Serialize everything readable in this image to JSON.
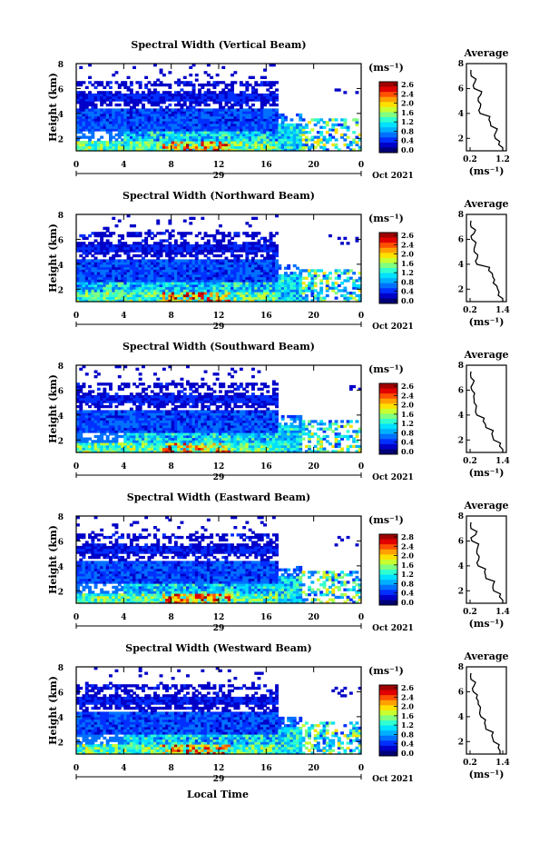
{
  "figure": {
    "shared_xlabel": "Local Time",
    "date_label": "Oct 2021",
    "day_label": "29",
    "units_label": "(ms⁻¹)",
    "average_title": "Average",
    "colormap": [
      "#00007a",
      "#0000c8",
      "#0030ff",
      "#0070ff",
      "#00b0ff",
      "#00e0ff",
      "#30ffd0",
      "#80ff80",
      "#c8ff30",
      "#ffe000",
      "#ffa000",
      "#ff5000",
      "#e00000",
      "#a00000"
    ]
  },
  "chart_data": [
    {
      "type": "heatmap",
      "title": "Spectral Width (Vertical Beam)",
      "ylabel": "Height (km)",
      "x_range": [
        0,
        24
      ],
      "y_range": [
        1,
        8
      ],
      "x_ticks": [
        "0",
        "4",
        "8",
        "12",
        "16",
        "20",
        "0"
      ],
      "y_ticks": [
        "2",
        "4",
        "6",
        "8"
      ],
      "colorbar_ticks": [
        "2.6",
        "2.4",
        "2.0",
        "1.6",
        "1.2",
        "0.8",
        "0.4",
        "0.0"
      ],
      "color_range": [
        0,
        2.8
      ],
      "average": {
        "xlim": [
          0.2,
          1.2
        ],
        "x_ticks": [
          "0.2",
          "1.2"
        ],
        "xlabel": "(ms⁻¹)",
        "heights": [
          1.0,
          1.5,
          2.0,
          2.5,
          3.0,
          3.5,
          4.0,
          4.5,
          5.0,
          5.5,
          6.0,
          6.5,
          7.0,
          7.5
        ],
        "values": [
          1.2,
          1.05,
          1.0,
          0.95,
          0.85,
          0.75,
          0.55,
          0.5,
          0.45,
          0.5,
          0.35,
          0.3,
          0.25,
          0.2
        ]
      }
    },
    {
      "type": "heatmap",
      "title": "Spectral Width (Northward Beam)",
      "ylabel": "Height (km)",
      "x_range": [
        0,
        24
      ],
      "y_range": [
        1,
        8
      ],
      "x_ticks": [
        "0",
        "4",
        "8",
        "12",
        "16",
        "20",
        "0"
      ],
      "y_ticks": [
        "2",
        "4",
        "6",
        "8"
      ],
      "colorbar_ticks": [
        "2.6",
        "2.4",
        "2.0",
        "1.6",
        "1.2",
        "0.8",
        "0.4",
        "0.0"
      ],
      "color_range": [
        0,
        2.8
      ],
      "average": {
        "xlim": [
          0.2,
          1.4
        ],
        "x_ticks": [
          "0.2",
          "1.4"
        ],
        "xlabel": "(ms⁻¹)",
        "heights": [
          1.0,
          1.5,
          2.0,
          2.5,
          3.0,
          3.5,
          4.0,
          4.5,
          5.0,
          5.5,
          6.0,
          6.5,
          7.0,
          7.5
        ],
        "values": [
          1.4,
          1.2,
          1.25,
          1.0,
          1.05,
          0.85,
          0.5,
          0.45,
          0.35,
          0.35,
          0.3,
          0.3,
          0.25,
          0.2
        ]
      }
    },
    {
      "type": "heatmap",
      "title": "Spectral Width (Southward Beam)",
      "ylabel": "Height (km)",
      "x_range": [
        0,
        24
      ],
      "y_range": [
        1,
        8
      ],
      "x_ticks": [
        "0",
        "4",
        "8",
        "12",
        "16",
        "20",
        "0"
      ],
      "y_ticks": [
        "2",
        "4",
        "6",
        "8"
      ],
      "colorbar_ticks": [
        "2.6",
        "2.4",
        "2.0",
        "1.6",
        "1.2",
        "0.8",
        "0.4",
        "0.0"
      ],
      "color_range": [
        0,
        2.8
      ],
      "average": {
        "xlim": [
          0.2,
          1.4
        ],
        "x_ticks": [
          "0.2",
          "1.4"
        ],
        "xlabel": "(ms⁻¹)",
        "heights": [
          1.0,
          1.5,
          2.0,
          2.5,
          3.0,
          3.5,
          4.0,
          4.5,
          5.0,
          5.5,
          6.0,
          6.5,
          7.0,
          7.5
        ],
        "values": [
          1.4,
          1.25,
          1.1,
          0.95,
          0.8,
          0.65,
          0.5,
          0.4,
          0.35,
          0.3,
          0.3,
          0.25,
          0.25,
          0.2
        ]
      }
    },
    {
      "type": "heatmap",
      "title": "Spectral Width (Eastward Beam)",
      "ylabel": "Height (km)",
      "x_range": [
        0,
        24
      ],
      "y_range": [
        1,
        8
      ],
      "x_ticks": [
        "0",
        "4",
        "8",
        "12",
        "16",
        "20",
        "0"
      ],
      "y_ticks": [
        "2",
        "4",
        "6",
        "8"
      ],
      "colorbar_ticks": [
        "2.8",
        "2.4",
        "2.0",
        "1.6",
        "1.2",
        "0.8",
        "0.4",
        "0.0"
      ],
      "color_range": [
        0,
        2.8
      ],
      "average": {
        "xlim": [
          0.2,
          1.4
        ],
        "x_ticks": [
          "0.2",
          "1.4"
        ],
        "xlabel": "(ms⁻¹)",
        "heights": [
          1.0,
          1.5,
          2.0,
          2.5,
          3.0,
          3.5,
          4.0,
          4.5,
          5.0,
          5.5,
          6.0,
          6.5,
          7.0,
          7.5
        ],
        "values": [
          1.4,
          1.25,
          1.1,
          1.0,
          0.8,
          0.7,
          0.55,
          0.5,
          0.45,
          0.45,
          0.3,
          0.35,
          0.25,
          0.2
        ]
      }
    },
    {
      "type": "heatmap",
      "title": "Spectral Width (Westward Beam)",
      "ylabel": "Height (km)",
      "x_range": [
        0,
        24
      ],
      "y_range": [
        1,
        8
      ],
      "x_ticks": [
        "0",
        "4",
        "8",
        "12",
        "16",
        "20",
        "0"
      ],
      "y_ticks": [
        "2",
        "4",
        "6",
        "8"
      ],
      "colorbar_ticks": [
        "2.6",
        "2.4",
        "2.0",
        "1.6",
        "1.2",
        "0.8",
        "0.4",
        "0.0"
      ],
      "color_range": [
        0,
        2.8
      ],
      "average": {
        "xlim": [
          0.2,
          1.4
        ],
        "x_ticks": [
          "0.2",
          "1.4"
        ],
        "xlabel": "(ms⁻¹)",
        "heights": [
          1.0,
          1.5,
          2.0,
          2.5,
          3.0,
          3.5,
          4.0,
          4.5,
          5.0,
          5.5,
          6.0,
          6.5,
          7.0,
          7.5
        ],
        "values": [
          1.3,
          1.2,
          1.1,
          0.95,
          0.8,
          0.7,
          0.65,
          0.55,
          0.5,
          0.4,
          0.35,
          0.3,
          0.25,
          0.2
        ]
      }
    }
  ]
}
